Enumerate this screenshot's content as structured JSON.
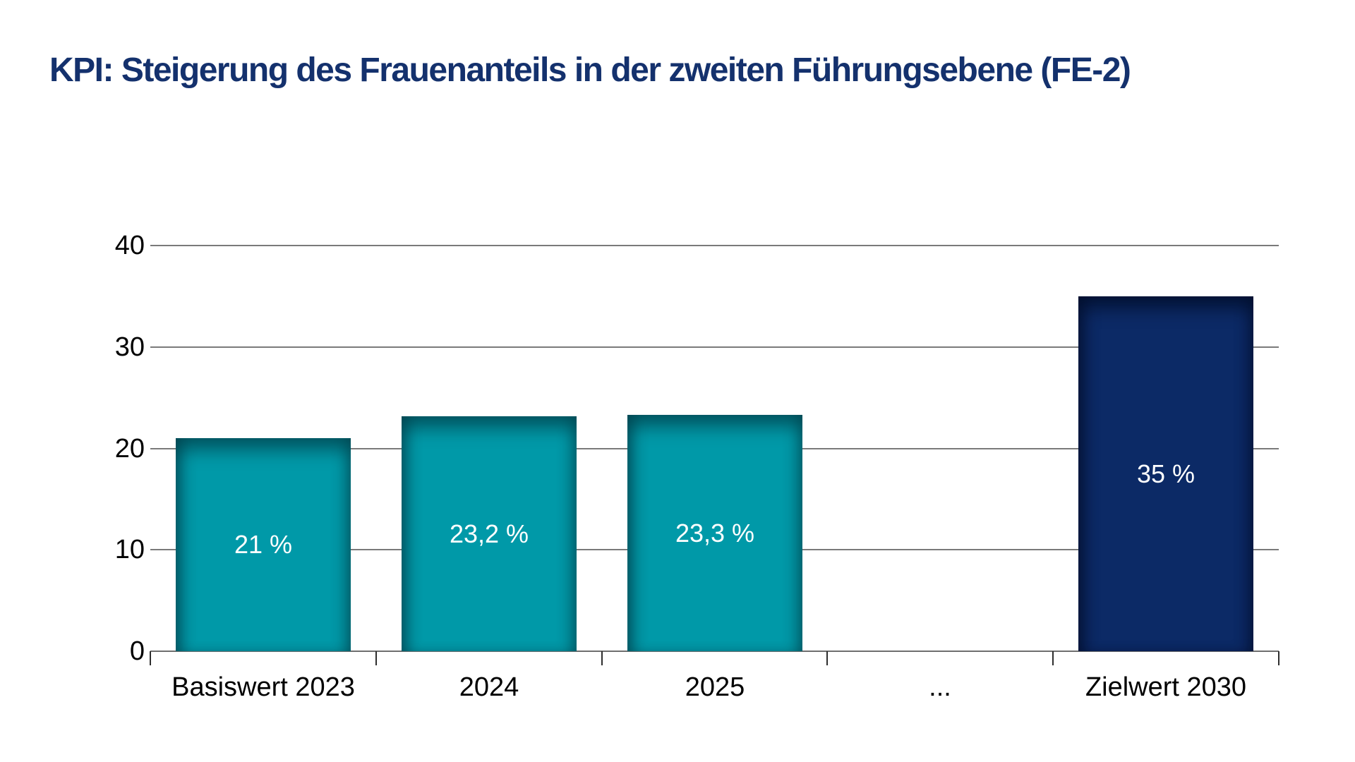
{
  "title": "KPI: Steigerung des Frauenanteils in der zweiten Führungsebene (FE-2)",
  "colors": {
    "background": "#FFFFFF",
    "title": "#14316D",
    "bar_teal": "#0099A8",
    "bar_navy": "#0C2A66",
    "grid": "#7A7A7A",
    "axis": "#6E6E6E",
    "tick": "#2E2E2E",
    "label": "#000000",
    "value_label": "#FFFFFF"
  },
  "chart_data": {
    "type": "bar",
    "title": "KPI: Steigerung des Frauenanteils in der zweiten Führungsebene (FE-2)",
    "categories": [
      "Basiswert 2023",
      "2024",
      "2025",
      "...",
      "Zielwert 2030"
    ],
    "values": [
      21,
      23.2,
      23.3,
      null,
      35
    ],
    "value_labels": [
      "21 %",
      "23,2 %",
      "23,3 %",
      null,
      "35 %"
    ],
    "bar_styles": [
      "teal",
      "teal",
      "teal",
      null,
      "navy"
    ],
    "unit": "%",
    "xlabel": "",
    "ylabel": "",
    "ylim": [
      0,
      45
    ],
    "yticks": [
      0,
      10,
      20,
      30,
      40
    ],
    "grid": "horizontal-only",
    "legend": "none"
  }
}
